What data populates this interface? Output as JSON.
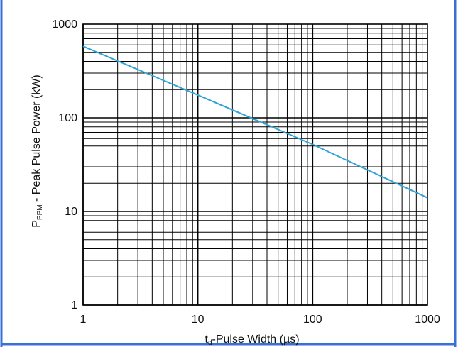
{
  "colors": {
    "frame_border": "#3a6fd8",
    "grid": "#000000",
    "curve": "#2fa3d6"
  },
  "chart_data": {
    "type": "line",
    "xscale": "log",
    "yscale": "log",
    "xlim": [
      1,
      1000
    ],
    "ylim": [
      1,
      1000
    ],
    "grid": true,
    "legend": "none",
    "xlabel_prefix": "t",
    "xlabel_subscript": "d",
    "xlabel_rest": "-Pulse Width (µs)",
    "ylabel_prefix": "P",
    "ylabel_subscript": "PPM",
    "ylabel_rest": " - Peak Pulse Power (kW)",
    "x_ticks": [
      {
        "value": 1,
        "label": "1"
      },
      {
        "value": 10,
        "label": "10"
      },
      {
        "value": 100,
        "label": "100"
      },
      {
        "value": 1000,
        "label": "1000"
      }
    ],
    "y_ticks": [
      {
        "value": 1,
        "label": "1"
      },
      {
        "value": 10,
        "label": "10"
      },
      {
        "value": 100,
        "label": "100"
      },
      {
        "value": 1000,
        "label": "1000"
      }
    ],
    "series": [
      {
        "x": [
          1,
          10,
          100,
          1000
        ],
        "y": [
          580,
          175,
          52,
          14
        ]
      }
    ]
  }
}
